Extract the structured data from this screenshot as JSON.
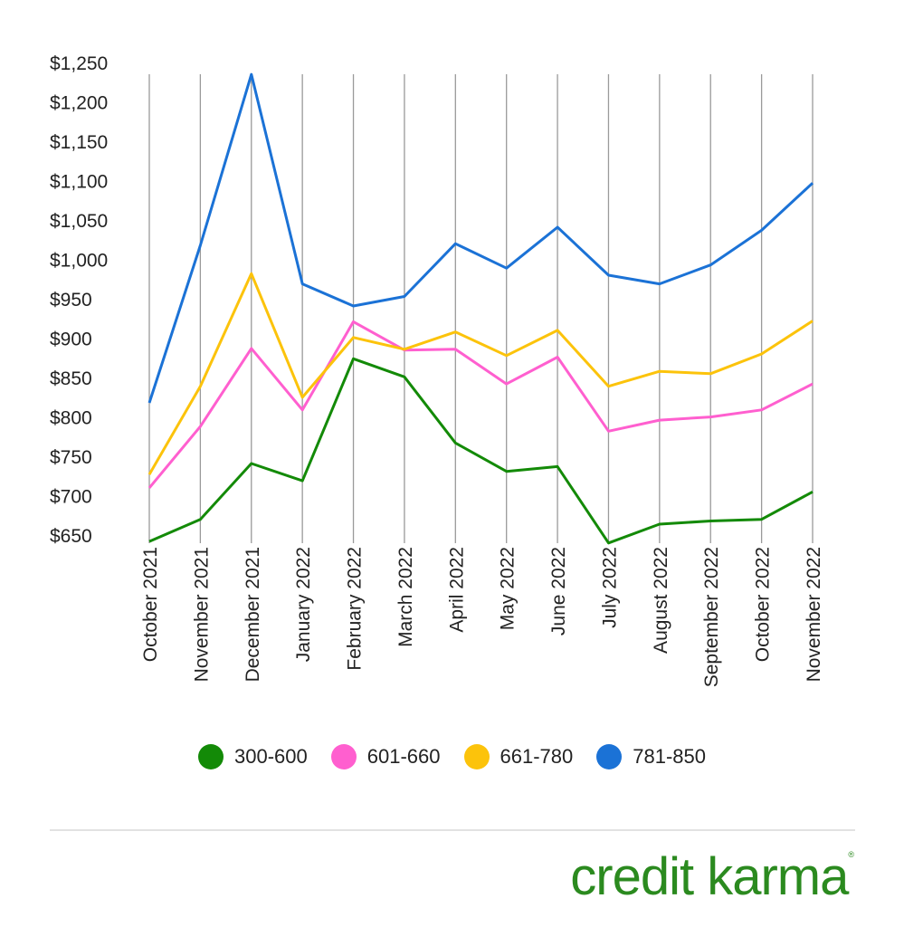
{
  "chart_data": {
    "type": "line",
    "title": "",
    "xlabel": "",
    "ylabel": "",
    "ylim": [
      650,
      1250
    ],
    "yticks": [
      "$650",
      "$700",
      "$750",
      "$800",
      "$850",
      "$900",
      "$950",
      "$1,000",
      "$1,050",
      "$1,100",
      "$1,150",
      "$1,200",
      "$1,250"
    ],
    "ytick_values": [
      650,
      700,
      750,
      800,
      850,
      900,
      950,
      1000,
      1050,
      1100,
      1150,
      1200,
      1250
    ],
    "grid": "vertical",
    "legend_position": "bottom",
    "categories": [
      "October 2021",
      "November 2021",
      "December 2021",
      "January 2022",
      "February 2022",
      "March 2022",
      "April 2022",
      "May 2022",
      "June 2022",
      "July 2022",
      "August 2022",
      "September 2022",
      "October 2022",
      "November 2022"
    ],
    "series": [
      {
        "name": "300-600",
        "color": "#138a07",
        "values": [
          643,
          671,
          742,
          720,
          875,
          852,
          768,
          732,
          738,
          641,
          665,
          669,
          671,
          706
        ]
      },
      {
        "name": "601-660",
        "color": "#ff5fcf",
        "values": [
          711,
          789,
          888,
          810,
          922,
          886,
          887,
          843,
          877,
          783,
          797,
          801,
          810,
          843
        ]
      },
      {
        "name": "661-780",
        "color": "#fcc30b",
        "values": [
          728,
          840,
          983,
          826,
          902,
          887,
          909,
          879,
          911,
          840,
          859,
          856,
          881,
          923
        ]
      },
      {
        "name": "781-850",
        "color": "#1b72d6",
        "values": [
          819,
          1019,
          1236,
          970,
          942,
          954,
          1021,
          990,
          1042,
          981,
          970,
          994,
          1038,
          1098
        ]
      }
    ]
  },
  "branding": {
    "logo_text": "credit karma",
    "logo_mark": "®",
    "logo_color": "#2b8a1f"
  }
}
